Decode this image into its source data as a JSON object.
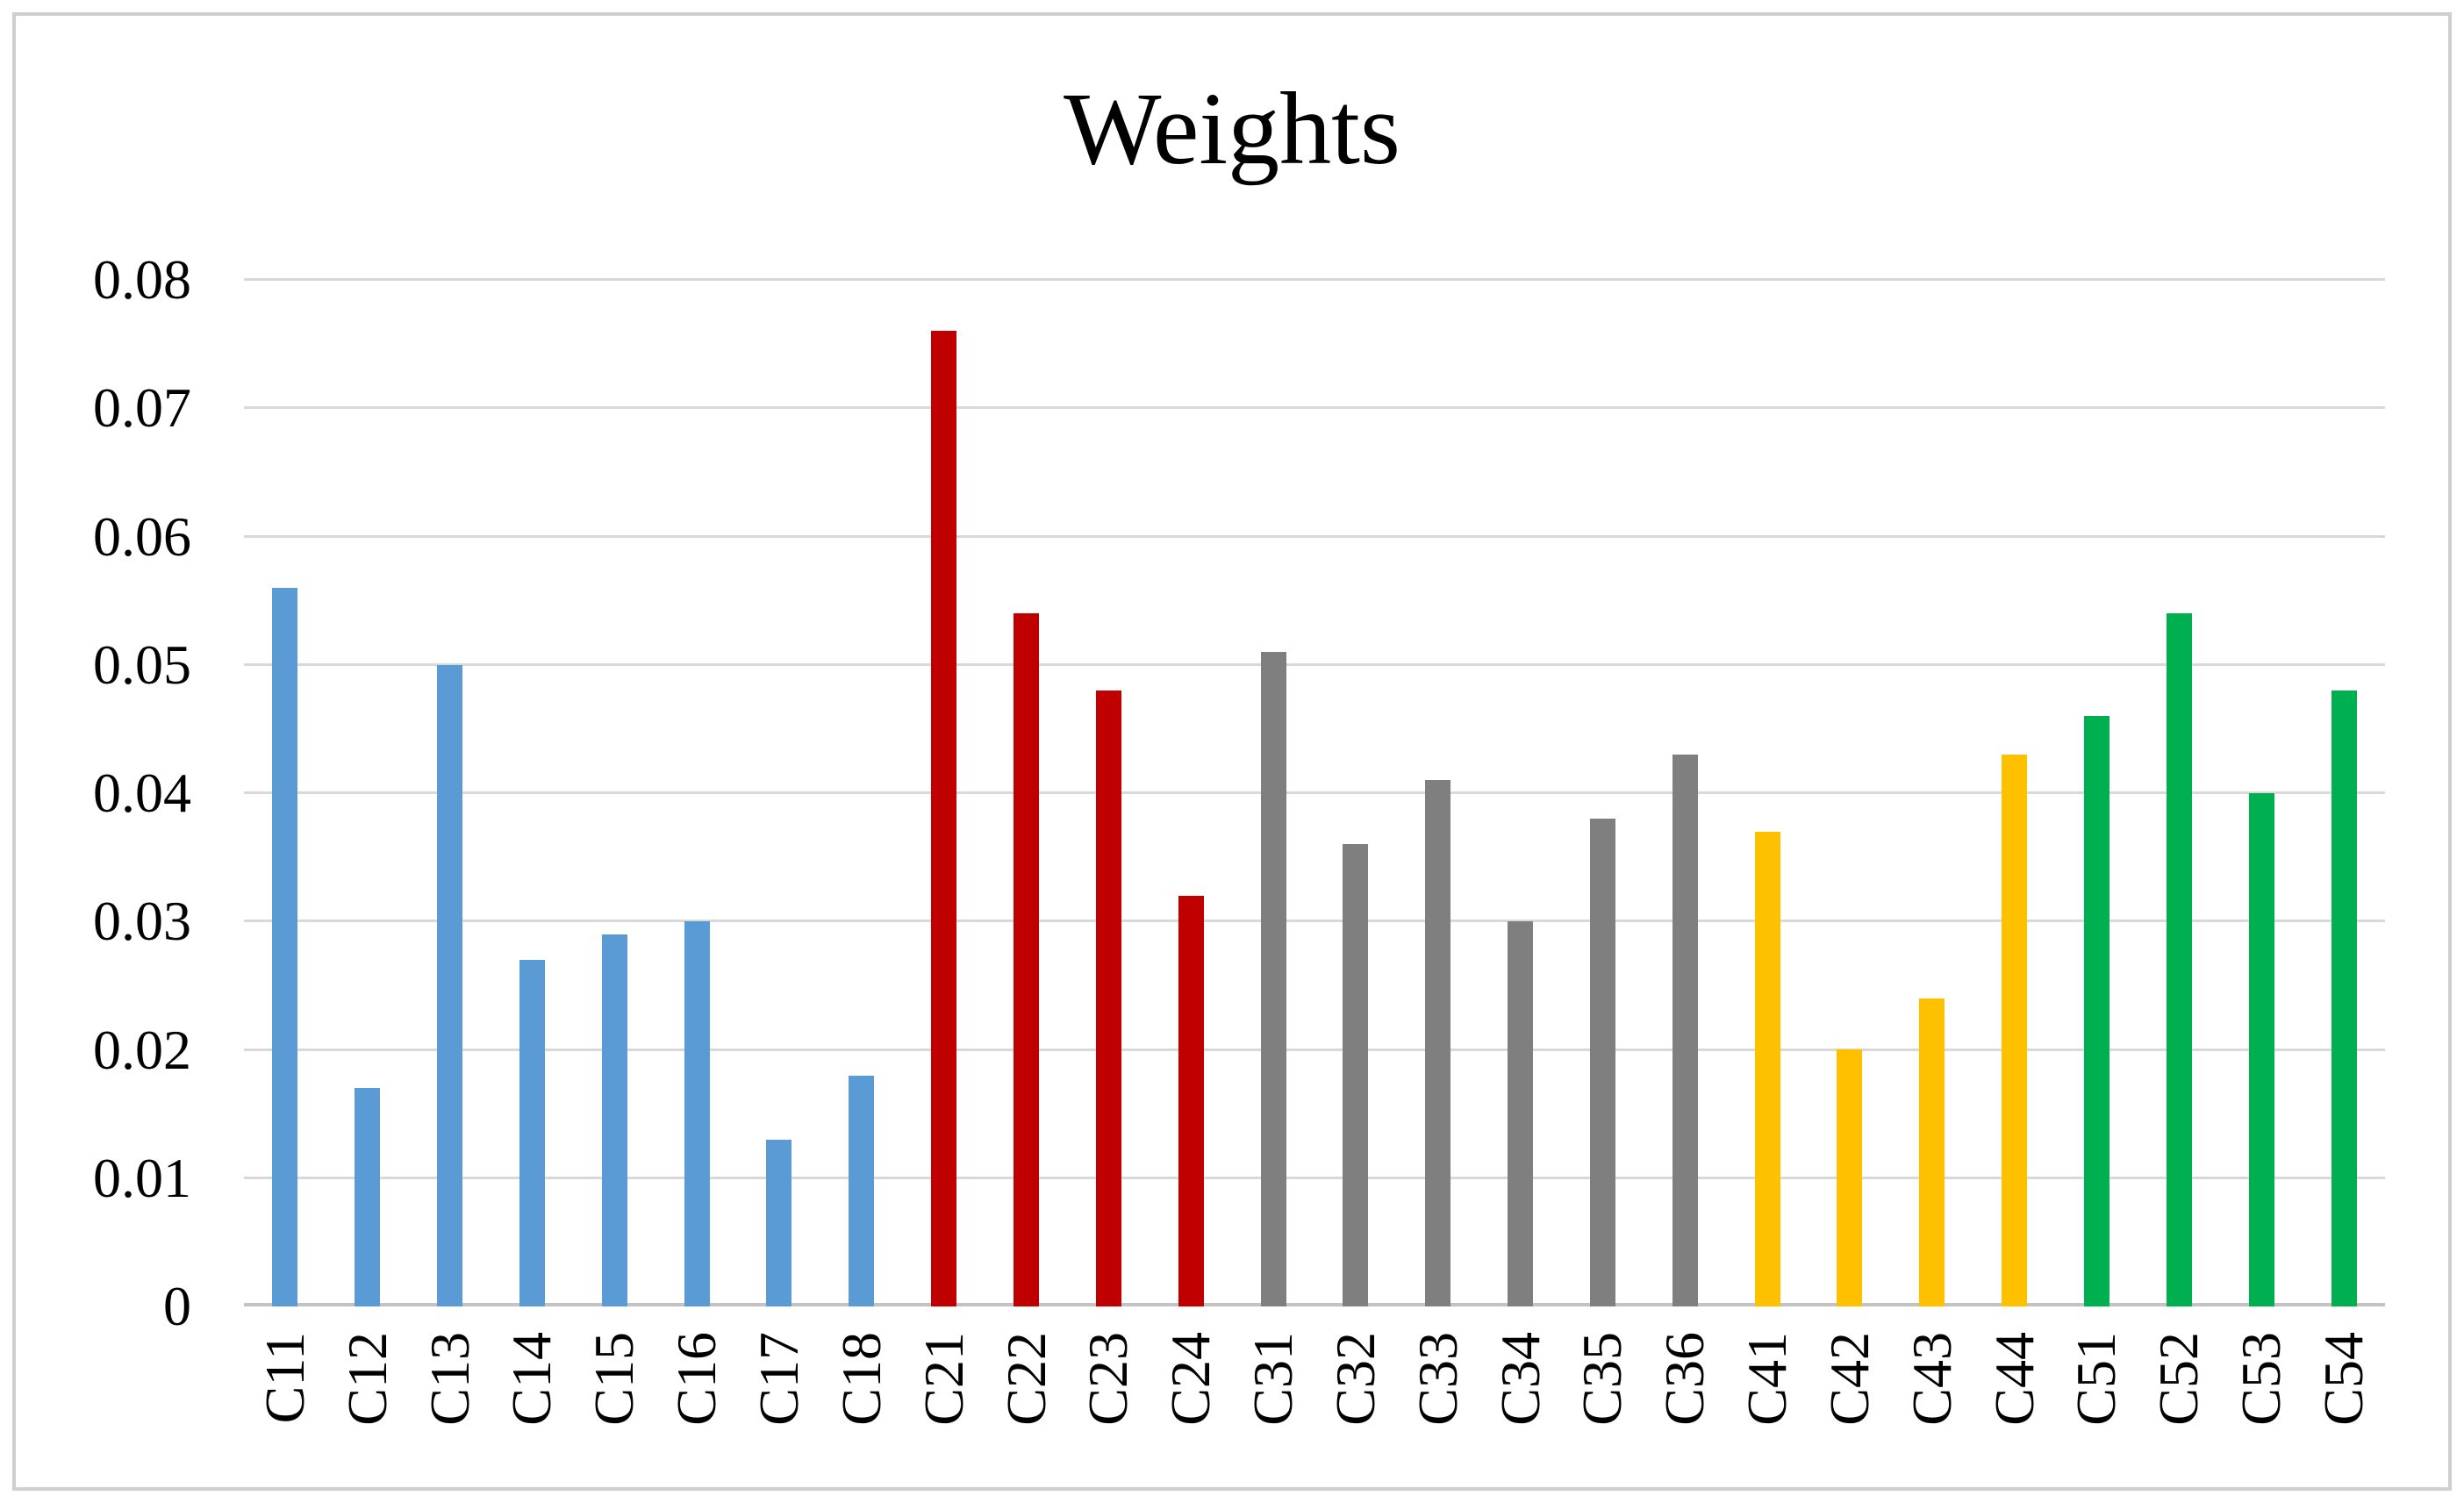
{
  "title": "Weights",
  "palette": {
    "group_blue": "#5B9BD5",
    "group_red": "#C00000",
    "group_gray": "#7F7F7F",
    "group_gold": "#FFC000",
    "group_green": "#00B050",
    "gridline": "#D9D9D9",
    "axis_line": "#C3C3C3",
    "frame_border": "#CFCFCF",
    "text": "#000000",
    "background": "#FFFFFF"
  },
  "chart_data": {
    "type": "bar",
    "title": "Weights",
    "xlabel": "",
    "ylabel": "",
    "ylim": [
      0,
      0.08
    ],
    "ytick_step": 0.01,
    "yticks": [
      "0",
      "0.01",
      "0.02",
      "0.03",
      "0.04",
      "0.05",
      "0.06",
      "0.07",
      "0.08"
    ],
    "grid": true,
    "legend_position": "none",
    "categories": [
      "C11",
      "C12",
      "C13",
      "C14",
      "C15",
      "C16",
      "C17",
      "C18",
      "C21",
      "C22",
      "C23",
      "C24",
      "C31",
      "C32",
      "C33",
      "C34",
      "C35",
      "C36",
      "C41",
      "C42",
      "C43",
      "C44",
      "C51",
      "C52",
      "C53",
      "C54"
    ],
    "values": [
      0.056,
      0.017,
      0.05,
      0.027,
      0.029,
      0.03,
      0.013,
      0.018,
      0.076,
      0.054,
      0.048,
      0.032,
      0.051,
      0.036,
      0.041,
      0.03,
      0.038,
      0.043,
      0.037,
      0.02,
      0.024,
      0.043,
      0.046,
      0.054,
      0.04,
      0.048
    ],
    "group_colors": {
      "C1": "#5B9BD5",
      "C2": "#C00000",
      "C3": "#7F7F7F",
      "C4": "#FFC000",
      "C5": "#00B050"
    }
  }
}
